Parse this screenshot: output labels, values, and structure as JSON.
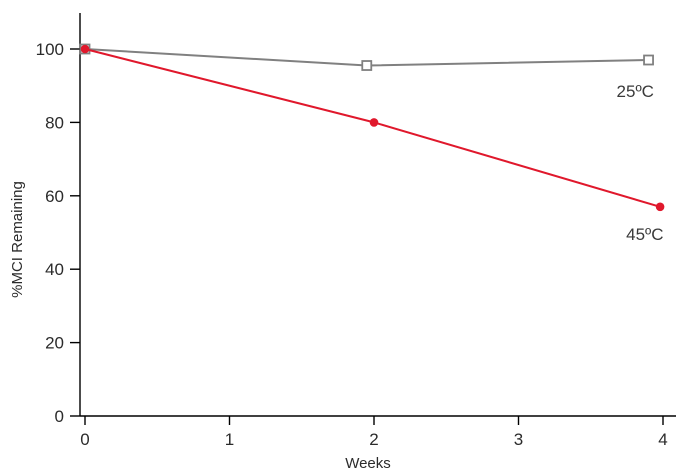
{
  "chart_data": {
    "type": "line",
    "title": "",
    "xlabel": "Weeks",
    "ylabel": "%MCI Remaining",
    "xlim": [
      0,
      4
    ],
    "ylim": [
      0,
      100
    ],
    "xticks": [
      0,
      1,
      2,
      3,
      4
    ],
    "yticks": [
      0,
      20,
      40,
      60,
      80,
      100
    ],
    "grid": false,
    "legend": "none",
    "series": [
      {
        "name": "25ºC",
        "color": "#808080",
        "marker": "open-square",
        "x": [
          0,
          1.95,
          3.9
        ],
        "y": [
          100,
          95.5,
          97
        ]
      },
      {
        "name": "45ºC",
        "color": "#e0182c",
        "marker": "filled-circle",
        "x": [
          0,
          2,
          3.98
        ],
        "y": [
          100,
          80,
          57
        ]
      }
    ]
  }
}
